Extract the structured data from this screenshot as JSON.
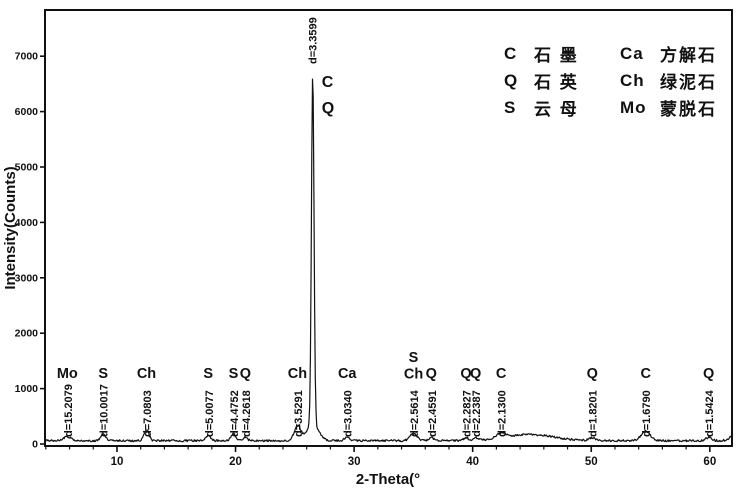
{
  "figure": {
    "background": "#ffffff",
    "ink": "#111111"
  },
  "chart_data": {
    "type": "line",
    "title": "",
    "xlabel": "2-Theta(°",
    "ylabel": "Intensity(Counts)",
    "xlim": [
      3.93,
      61.87
    ],
    "ylim": [
      0,
      7830
    ],
    "xticks": [
      10,
      20,
      30,
      40,
      50,
      60
    ],
    "xminor_step": 2,
    "yticks": [
      0,
      1000,
      2000,
      3000,
      4000,
      5000,
      6000,
      7000
    ],
    "grid": false,
    "legend_position": "top-right",
    "baseline_counts": 60,
    "noise_counts": 18,
    "peaks": [
      {
        "two_theta": 5.81,
        "d": "d=15.2079",
        "minerals": [
          "Mo"
        ],
        "intensity": 70,
        "sigma": 0.35,
        "label_style": "normal"
      },
      {
        "two_theta": 8.84,
        "d": "d=10.0017",
        "minerals": [
          "S"
        ],
        "intensity": 130,
        "sigma": 0.2,
        "label_style": "normal"
      },
      {
        "two_theta": 12.49,
        "d": "d=7.0803",
        "minerals": [
          "Ch"
        ],
        "intensity": 200,
        "sigma": 0.2,
        "label_style": "normal"
      },
      {
        "two_theta": 17.7,
        "d": "d=5.0077",
        "minerals": [
          "S"
        ],
        "intensity": 90,
        "sigma": 0.22,
        "label_style": "normal"
      },
      {
        "two_theta": 19.82,
        "d": "d=4.4752",
        "minerals": [
          "S"
        ],
        "intensity": 125,
        "sigma": 0.2,
        "label_style": "normal"
      },
      {
        "two_theta": 20.83,
        "d": "d=4.2618",
        "minerals": [
          "Q"
        ],
        "intensity": 70,
        "sigma": 0.16,
        "label_style": "normal"
      },
      {
        "two_theta": 25.22,
        "d": "d=3.5291",
        "minerals": [
          "Ch"
        ],
        "intensity": 260,
        "sigma": 0.28,
        "label_style": "normal"
      },
      {
        "two_theta": 26.51,
        "d": "d=3.3599",
        "minerals": [
          "C",
          "Q"
        ],
        "intensity": 6350,
        "sigma": 0.11,
        "label_style": "apex-right"
      },
      {
        "two_theta": 29.42,
        "d": "d=3.0340",
        "minerals": [
          "Ca"
        ],
        "intensity": 70,
        "sigma": 0.22,
        "label_style": "normal"
      },
      {
        "two_theta": 35.01,
        "d": "d=2.5614",
        "minerals": [
          "S",
          "Ch"
        ],
        "intensity": 125,
        "sigma": 0.3,
        "label_style": "stacked"
      },
      {
        "two_theta": 36.51,
        "d": "d=2.4591",
        "minerals": [
          "Q"
        ],
        "intensity": 55,
        "sigma": 0.22,
        "label_style": "normal"
      },
      {
        "two_theta": 39.44,
        "d": "d=2.2827",
        "minerals": [
          "Q"
        ],
        "intensity": 50,
        "sigma": 0.2,
        "label_style": "normal"
      },
      {
        "two_theta": 40.25,
        "d": "d=2.2387",
        "minerals": [
          "Q"
        ],
        "intensity": 45,
        "sigma": 0.2,
        "label_style": "normal"
      },
      {
        "two_theta": 42.4,
        "d": "d=2.1300",
        "minerals": [
          "C"
        ],
        "intensity": 90,
        "sigma": 0.4,
        "label_style": "normal"
      },
      {
        "two_theta": 50.08,
        "d": "d=1.8201",
        "minerals": [
          "Q"
        ],
        "intensity": 50,
        "sigma": 0.25,
        "label_style": "normal"
      },
      {
        "two_theta": 54.59,
        "d": "d=1.6790",
        "minerals": [
          "C"
        ],
        "intensity": 170,
        "sigma": 0.38,
        "label_style": "normal"
      },
      {
        "two_theta": 59.9,
        "d": "d=1.5424",
        "minerals": [
          "Q"
        ],
        "intensity": 55,
        "sigma": 0.25,
        "label_style": "normal"
      }
    ],
    "unlabeled_features": [
      {
        "two_theta": 26.51,
        "intensity": 280,
        "sigma": 0.5
      },
      {
        "two_theta": 44.8,
        "intensity": 110,
        "sigma": 2.0
      },
      {
        "two_theta": 62.4,
        "intensity": 200,
        "sigma": 0.45
      }
    ],
    "legend": [
      {
        "symbol": "C",
        "name": "石 墨"
      },
      {
        "symbol": "Ca",
        "name": "方解石"
      },
      {
        "symbol": "Q",
        "name": "石 英"
      },
      {
        "symbol": "Ch",
        "name": "绿泥石"
      },
      {
        "symbol": "S",
        "name": "云 母"
      },
      {
        "symbol": "Mo",
        "name": "蒙脱石"
      }
    ]
  }
}
